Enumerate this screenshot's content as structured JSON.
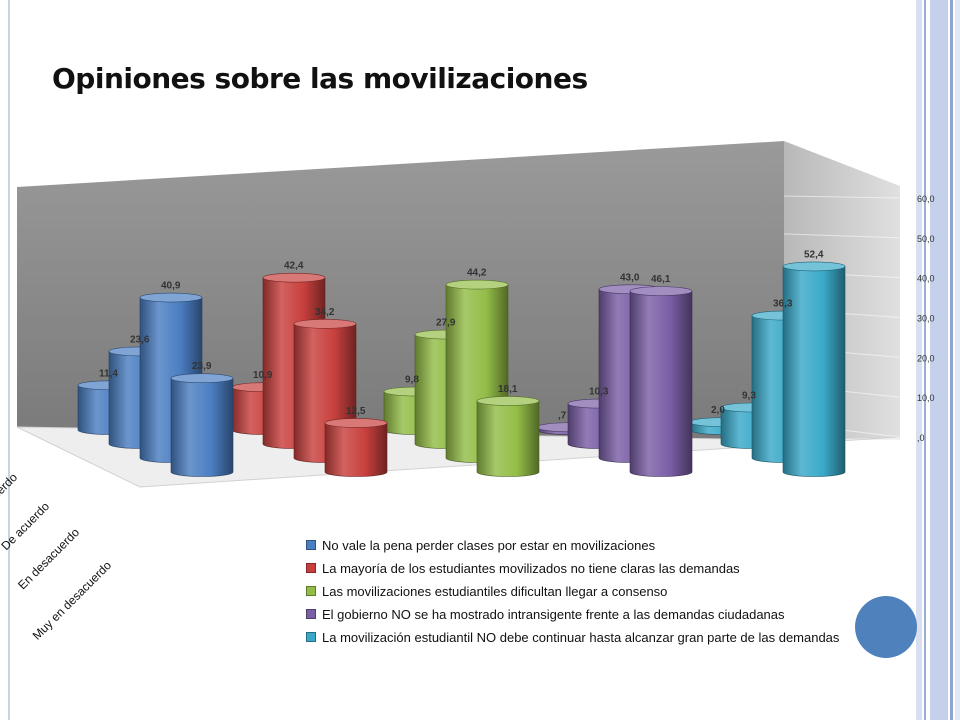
{
  "slide": {
    "title": "Opiniones sobre las movilizaciones"
  },
  "colors": {
    "series": [
      "#4a7ec2",
      "#c8403d",
      "#93bd47",
      "#7a5ea6",
      "#3aa9c9"
    ],
    "back_wall": "#8a8a8a",
    "side_wall": "#c6c6c6",
    "floor": "#f2f2f2",
    "accent_circle": "#4f81bd"
  },
  "chart_data": {
    "type": "bar",
    "style": "3d-cylinder",
    "title": "",
    "categories": [
      "Muy de acuerdo",
      "De acuerdo",
      "En desacuerdo",
      "Muy en desacuerdo"
    ],
    "visible_category_labels": [
      "acuerdo",
      "De acuerdo",
      "En desacuerdo",
      "Muy en desacuerdo"
    ],
    "series": [
      {
        "name": "No vale la pena perder clases por estar en movilizaciones",
        "values": [
          11.4,
          23.6,
          40.9,
          23.9
        ],
        "labels": [
          "11,4",
          "23,6",
          "40,9",
          "23,9"
        ]
      },
      {
        "name": "La mayoría de los estudiantes movilizados no tiene claras las demandas",
        "values": [
          10.9,
          42.4,
          34.2,
          12.5
        ],
        "labels": [
          "10,9",
          "42,4",
          "34,2",
          "12,5"
        ]
      },
      {
        "name": "Las movilizaciones estudiantiles dificultan llegar a consenso",
        "values": [
          9.8,
          27.9,
          44.2,
          18.1
        ],
        "labels": [
          "9,8",
          "27,9",
          "44,2",
          "18,1"
        ]
      },
      {
        "name": "El gobierno NO se ha mostrado intransigente frente a las demandas ciudadanas",
        "values": [
          0.7,
          10.3,
          43.0,
          46.1
        ],
        "labels": [
          ",7",
          "10,3",
          "43,0",
          "46,1"
        ]
      },
      {
        "name": "La movilización estudiantil NO debe continuar hasta alcanzar gran parte de las demandas",
        "values": [
          2.0,
          9.3,
          36.3,
          52.4
        ],
        "labels": [
          "2,0",
          "9,3",
          "36,3",
          "52,4"
        ]
      }
    ],
    "yaxis": {
      "ticks": [
        ",0",
        "10,0",
        "20,0",
        "30,0",
        "40,0",
        "50,0",
        "60,0"
      ],
      "ylim": [
        0,
        60
      ]
    },
    "grid": true,
    "legend_position": "bottom-right"
  }
}
